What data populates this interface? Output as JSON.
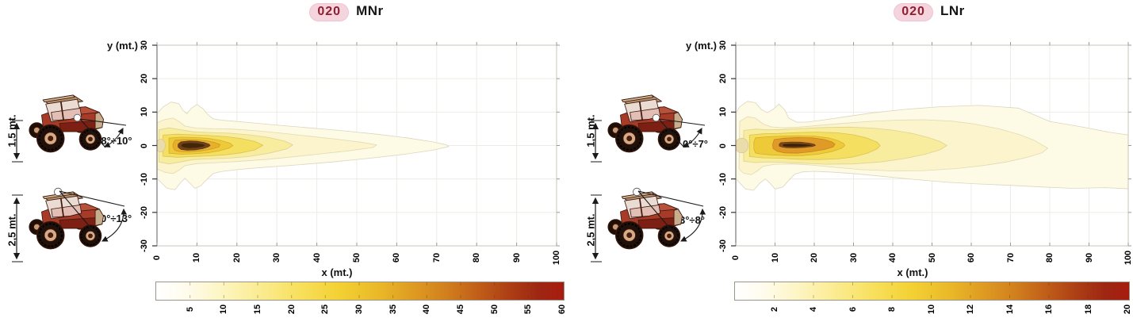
{
  "page": {
    "background": "#FFFFFF"
  },
  "panels": [
    {
      "id": "MNr",
      "title": {
        "badge": "020",
        "name": "MNr",
        "badge_text_color": "#8C2031",
        "badge_bg_color": "#F5D4DD"
      },
      "tractors": [
        {
          "height_label": "1,5 mt.",
          "angle_label": "8°÷10°",
          "lamp_position": "front"
        },
        {
          "height_label": "2,5 mt.",
          "angle_label": "10°÷13°",
          "lamp_position": "roof"
        }
      ],
      "axes": {
        "y_label": "y (mt.)",
        "x_label": "x (mt.)",
        "x_ticks": [
          0,
          10,
          20,
          30,
          40,
          50,
          60,
          70,
          80,
          90,
          100
        ],
        "y_ticks": [
          30,
          20,
          10,
          0,
          -10,
          -20,
          -30
        ]
      },
      "colorbar": {
        "min": 0,
        "max": 60,
        "ticks": [
          5,
          10,
          15,
          20,
          25,
          30,
          35,
          40,
          45,
          50,
          55,
          60
        ]
      }
    },
    {
      "id": "LNr",
      "title": {
        "badge": "020",
        "name": "LNr",
        "badge_text_color": "#8C2031",
        "badge_bg_color": "#F5D4DD"
      },
      "tractors": [
        {
          "height_label": "1,5 mt.",
          "angle_label": "0°÷7°",
          "lamp_position": "front"
        },
        {
          "height_label": "2,5 mt.",
          "angle_label": "3°÷8°",
          "lamp_position": "roof"
        }
      ],
      "axes": {
        "y_label": "y (mt.)",
        "x_label": "x (mt.)",
        "x_ticks": [
          0,
          10,
          20,
          30,
          40,
          50,
          60,
          70,
          80,
          90,
          100
        ],
        "y_ticks": [
          30,
          20,
          10,
          0,
          -10,
          -20,
          -30
        ]
      },
      "colorbar": {
        "min": 0,
        "max": 20,
        "ticks": [
          2,
          4,
          6,
          8,
          10,
          12,
          14,
          16,
          18,
          20
        ]
      }
    }
  ],
  "chart_data": [
    {
      "type": "filled_contour",
      "title": "020 MNr",
      "xlabel": "x (mt.)",
      "ylabel": "y (mt.)",
      "xlim": [
        0,
        100
      ],
      "ylim": [
        -30,
        30
      ],
      "grid": true,
      "colorbar": {
        "range": [
          0,
          60
        ],
        "tick_step": 5,
        "colormap": "white -> yellow -> orange -> dark red",
        "position": "bottom"
      },
      "beam": {
        "center_y": 0,
        "max_reach_x": 73,
        "near_field_halfwidth_y": 13,
        "hotspot": {
          "x_range": [
            5.5,
            13.3
          ],
          "y_range": [
            -1.4,
            1.4
          ],
          "value": 60
        },
        "levels": [
          {
            "level": 5,
            "x_reach": 73,
            "y_halfwidth_max": 13
          },
          {
            "level": 10,
            "x_reach": 55,
            "y_halfwidth_max": 8
          },
          {
            "level": 15,
            "x_reach": 34,
            "y_halfwidth_max": 5.5
          },
          {
            "level": 20,
            "x_reach": 26.5,
            "y_halfwidth_max": 3.5
          },
          {
            "level": 25,
            "x_reach": 19,
            "y_halfwidth_max": 2.6
          },
          {
            "level": 30,
            "x_reach": 16,
            "y_halfwidth_max": 1.9
          },
          {
            "level": 60,
            "x_reach": 13.3,
            "y_halfwidth_max": 1.4
          }
        ]
      },
      "mounting_options": [
        {
          "height": "1,5 mt.",
          "tilt": "8°÷10°"
        },
        {
          "height": "2,5 mt.",
          "tilt": "10°÷13°"
        }
      ]
    },
    {
      "type": "filled_contour",
      "title": "020 LNr",
      "xlabel": "x (mt.)",
      "ylabel": "y (mt.)",
      "xlim": [
        0,
        100
      ],
      "ylim": [
        -30,
        30
      ],
      "grid": true,
      "colorbar": {
        "range": [
          0,
          20
        ],
        "tick_step": 2,
        "colormap": "white -> yellow -> orange -> dark red",
        "position": "bottom"
      },
      "beam": {
        "center_y": 0,
        "max_reach_x": 100,
        "near_field_halfwidth_y": 13,
        "hotspot": {
          "x_range": [
            11,
            20.3
          ],
          "y_range": [
            -1,
            1
          ],
          "value": 20
        },
        "levels": [
          {
            "level": 2,
            "x_reach": 100,
            "y_halfwidth_max": 13
          },
          {
            "level": 4,
            "x_reach": 80,
            "y_halfwidth_max": 8.5
          },
          {
            "level": 6,
            "x_reach": 54,
            "y_halfwidth_max": 5.6
          },
          {
            "level": 8,
            "x_reach": 37,
            "y_halfwidth_max": 4.2
          },
          {
            "level": 10,
            "x_reach": 28,
            "y_halfwidth_max": 3
          },
          {
            "level": 12,
            "x_reach": 25.5,
            "y_halfwidth_max": 2.4
          },
          {
            "level": 20,
            "x_reach": 20.3,
            "y_halfwidth_max": 1
          }
        ]
      },
      "mounting_options": [
        {
          "height": "1,5 mt.",
          "tilt": "0°÷7°"
        },
        {
          "height": "2,5 mt.",
          "tilt": "3°÷8°"
        }
      ]
    }
  ]
}
